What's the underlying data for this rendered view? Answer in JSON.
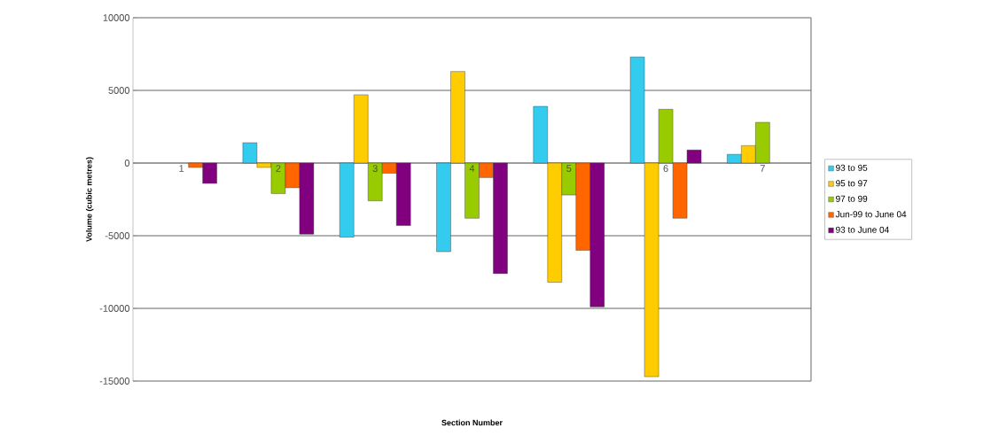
{
  "chart_data": {
    "type": "bar",
    "xlabel": "Section Number",
    "ylabel": "Volume (cubic metres)",
    "categories": [
      "1",
      "2",
      "3",
      "4",
      "5",
      "6",
      "7"
    ],
    "series": [
      {
        "name": "93 to 95",
        "color": "#33ccee",
        "values": [
          null,
          1400,
          -5100,
          -6100,
          3900,
          7300,
          600
        ]
      },
      {
        "name": "95 to 97",
        "color": "#ffcc00",
        "values": [
          null,
          -300,
          4700,
          6300,
          -8200,
          -14700,
          1200
        ]
      },
      {
        "name": "97 to 99",
        "color": "#99cc00",
        "values": [
          null,
          -2100,
          -2600,
          -3800,
          -2200,
          3700,
          2800
        ]
      },
      {
        "name": "Jun-99 to June 04",
        "color": "#ff6600",
        "values": [
          -300,
          -1700,
          -700,
          -1000,
          -6000,
          -3800,
          null
        ]
      },
      {
        "name": "93 to June 04",
        "color": "#800080",
        "values": [
          -1400,
          -4900,
          -4300,
          -7600,
          -9900,
          900,
          null
        ]
      }
    ],
    "ylim": [
      -15000,
      10000
    ],
    "yticks": [
      -15000,
      -10000,
      -5000,
      0,
      5000,
      10000
    ],
    "grid": "y",
    "legend": "right"
  }
}
